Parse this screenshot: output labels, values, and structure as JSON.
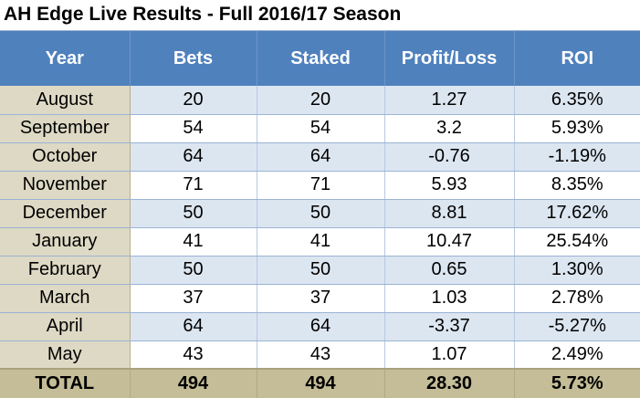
{
  "title": "AH Edge Live Results - Full 2016/17 Season",
  "columns": [
    "Year",
    "Bets",
    "Staked",
    "Profit/Loss",
    "ROI"
  ],
  "rows": [
    {
      "month": "August",
      "bets": "20",
      "staked": "20",
      "profit_loss": "1.27",
      "roi": "6.35%"
    },
    {
      "month": "September",
      "bets": "54",
      "staked": "54",
      "profit_loss": "3.2",
      "roi": "5.93%"
    },
    {
      "month": "October",
      "bets": "64",
      "staked": "64",
      "profit_loss": "-0.76",
      "roi": "-1.19%"
    },
    {
      "month": "November",
      "bets": "71",
      "staked": "71",
      "profit_loss": "5.93",
      "roi": "8.35%"
    },
    {
      "month": "December",
      "bets": "50",
      "staked": "50",
      "profit_loss": "8.81",
      "roi": "17.62%"
    },
    {
      "month": "January",
      "bets": "41",
      "staked": "41",
      "profit_loss": "10.47",
      "roi": "25.54%"
    },
    {
      "month": "February",
      "bets": "50",
      "staked": "50",
      "profit_loss": "0.65",
      "roi": "1.30%"
    },
    {
      "month": "March",
      "bets": "37",
      "staked": "37",
      "profit_loss": "1.03",
      "roi": "2.78%"
    },
    {
      "month": "April",
      "bets": "64",
      "staked": "64",
      "profit_loss": "-3.37",
      "roi": "-5.27%"
    },
    {
      "month": "May",
      "bets": "43",
      "staked": "43",
      "profit_loss": "1.07",
      "roi": "2.49%"
    }
  ],
  "total": {
    "label": "TOTAL",
    "bets": "494",
    "staked": "494",
    "profit_loss": "28.30",
    "roi": "5.73%"
  },
  "colors": {
    "header_bg": "#4f81bd",
    "band_blue": "#dce6f1",
    "month_col_bg": "#ddd9c4",
    "total_bg": "#c4bd97"
  }
}
